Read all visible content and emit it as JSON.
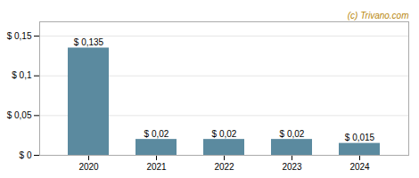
{
  "chart_data": {
    "type": "bar",
    "categories": [
      "2020",
      "2021",
      "2022",
      "2023",
      "2024"
    ],
    "values": [
      0.135,
      0.02,
      0.02,
      0.02,
      0.015
    ],
    "value_labels": [
      "$ 0,135",
      "$ 0,02",
      "$ 0,02",
      "$ 0,02",
      "$ 0,015"
    ],
    "data_labels": true,
    "color": "#5b8a9f",
    "ylim": [
      0,
      0.168
    ],
    "yticks": [
      {
        "value": 0,
        "label": "$ 0"
      },
      {
        "value": 0.05,
        "label": "$ 0,05"
      },
      {
        "value": 0.1,
        "label": "$ 0,1"
      },
      {
        "value": 0.15,
        "label": "$ 0,15"
      }
    ],
    "grid": true,
    "annotations": [
      {
        "text": "(c) Trivano.com",
        "color": "#b8860b"
      }
    ]
  }
}
